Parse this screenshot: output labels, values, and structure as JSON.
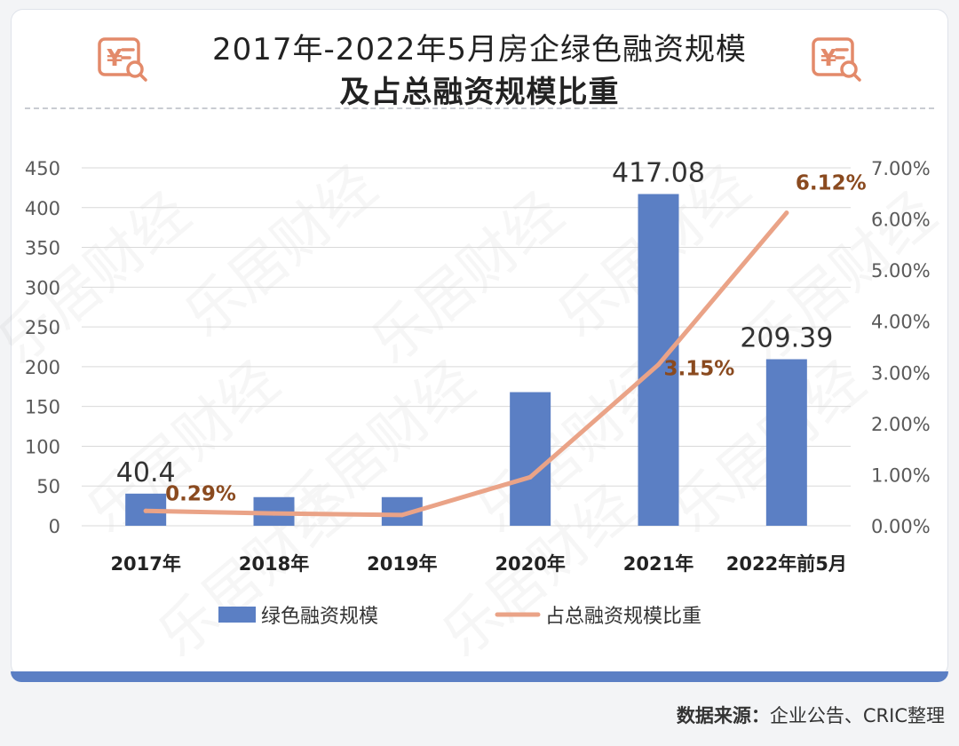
{
  "title_line1": "2017年-2022年5月房企绿色融资规模",
  "title_line2": "及占总融资规模比重",
  "source_label": "数据来源：",
  "source_value": "企业公告、CRIC整理",
  "watermark": "乐居财经",
  "colors": {
    "bar": "#5b7fc4",
    "line": "#eaa387",
    "pct_label": "#8a4a1f",
    "axis_text": "#5a5a5a",
    "grid": "#d9d9d9",
    "icon": "#e38a6a",
    "footer_bar": "#5b7fc4"
  },
  "icons": [
    "invoice-search-icon",
    "invoice-search-icon"
  ],
  "chart_data": {
    "type": "bar",
    "categories": [
      "2017年",
      "2018年",
      "2019年",
      "2020年",
      "2021年",
      "2022年前5月"
    ],
    "series": [
      {
        "name": "绿色融资规模",
        "type": "bar",
        "axis": "left",
        "values": [
          40.4,
          36,
          36,
          168,
          417.08,
          209.39
        ],
        "data_labels": [
          "40.4",
          "",
          "",
          "",
          "417.08",
          "209.39"
        ]
      },
      {
        "name": "占总融资规模比重",
        "type": "line",
        "axis": "right",
        "values": [
          0.29,
          0.24,
          0.21,
          0.95,
          3.15,
          6.12
        ],
        "data_labels": [
          "0.29%",
          "",
          "",
          "",
          "3.15%",
          "6.12%"
        ]
      }
    ],
    "y_left": {
      "min": 0,
      "max": 450,
      "ticks": [
        0,
        50,
        100,
        150,
        200,
        250,
        300,
        350,
        400,
        450
      ]
    },
    "y_right": {
      "min": 0,
      "max": 7,
      "ticks": [
        "0.00%",
        "1.00%",
        "2.00%",
        "3.00%",
        "4.00%",
        "5.00%",
        "6.00%",
        "7.00%"
      ]
    },
    "grid": true,
    "legend_position": "bottom"
  }
}
